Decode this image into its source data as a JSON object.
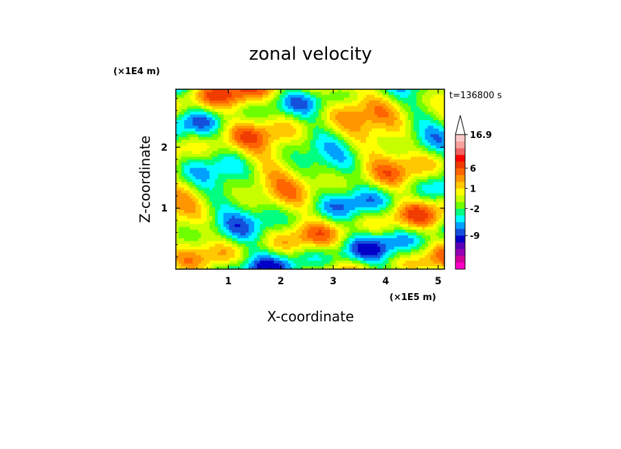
{
  "chart_data": {
    "type": "heatmap",
    "title": "zonal velocity",
    "xlabel": "X-coordinate",
    "ylabel": "Z-coordinate",
    "x_scale_label": "(×1E5 m)",
    "y_scale_label": "(×1E4 m)",
    "time_label": "t=136800 s",
    "xlim": [
      0,
      5.12
    ],
    "ylim": [
      0,
      2.95
    ],
    "xticks": [
      "1",
      "2",
      "3",
      "4",
      "5"
    ],
    "yticks": [
      "1",
      "2"
    ],
    "colorbar": {
      "levels": [
        "-9",
        "-2",
        "1",
        "6",
        "16.9"
      ],
      "colors": [
        "#ff00c8",
        "#d2009b",
        "#9600b4",
        "#5a00b4",
        "#0000c8",
        "#1450dc",
        "#00a0ff",
        "#00ffff",
        "#00ff80",
        "#6eff00",
        "#c8ff00",
        "#ffff00",
        "#ffc800",
        "#ff9600",
        "#ff6400",
        "#f03c00",
        "#ff0000",
        "#f06464",
        "#f6a0a0",
        "#f8c8c8"
      ]
    }
  }
}
